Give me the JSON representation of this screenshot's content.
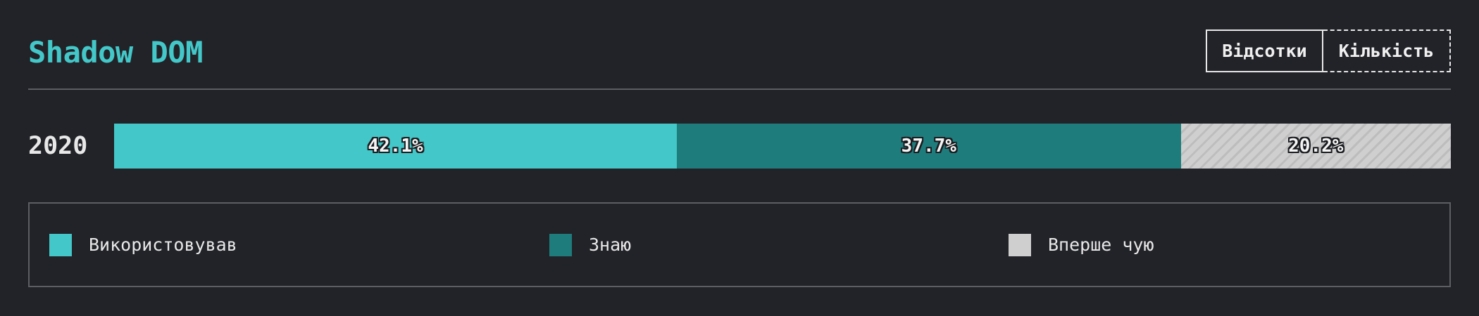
{
  "header": {
    "title": "Shadow DOM",
    "toggle": {
      "percent_label": "Відсотки",
      "count_label": "Кількість",
      "active": "percent"
    }
  },
  "colors": {
    "accent": "#43c7c8",
    "used": "#43c7c8",
    "know": "#1f7c7c",
    "never_heard": "#cfcfcf",
    "background": "#222328"
  },
  "chart_data": {
    "type": "bar",
    "orientation": "horizontal",
    "stacked": true,
    "normalized": true,
    "title": "Shadow DOM",
    "categories": [
      "2020"
    ],
    "series": [
      {
        "name": "Використовував",
        "values": [
          42.1
        ],
        "labels": [
          "42.1%"
        ],
        "color": "#43c7c8",
        "pattern": "solid"
      },
      {
        "name": "Знаю",
        "values": [
          37.7
        ],
        "labels": [
          "37.7%"
        ],
        "color": "#1f7c7c",
        "pattern": "solid"
      },
      {
        "name": "Вперше чую",
        "values": [
          20.2
        ],
        "labels": [
          "20.2%"
        ],
        "color": "#cfcfcf",
        "pattern": "hatched"
      }
    ],
    "unit": "%",
    "xlim": [
      0,
      100
    ],
    "legend_position": "bottom"
  }
}
